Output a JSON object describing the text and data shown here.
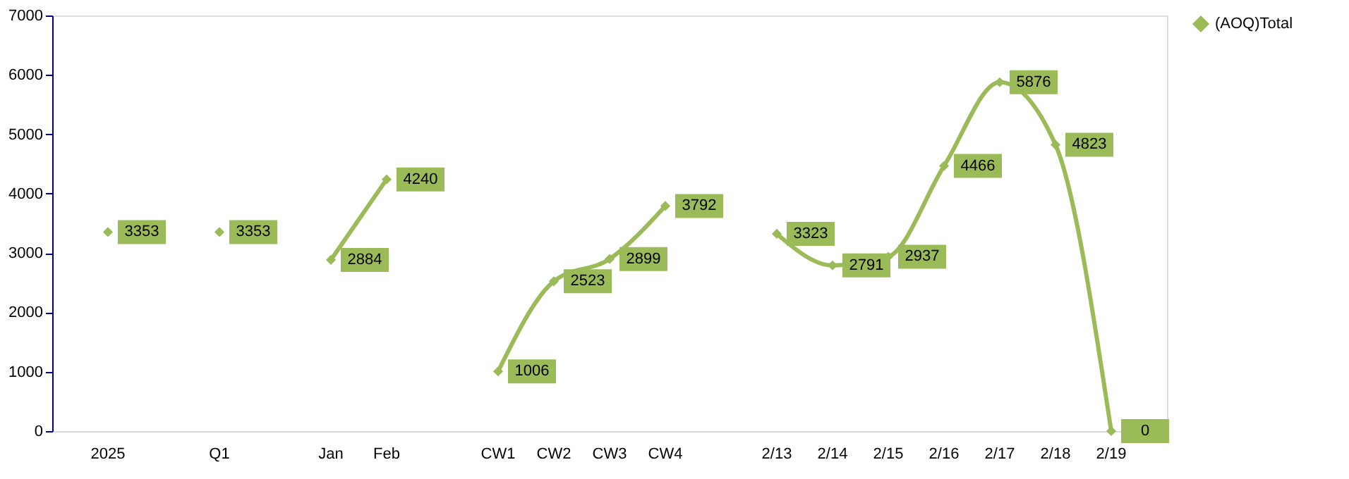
{
  "chart_data": {
    "type": "line",
    "categories": [
      "2025",
      null,
      "Q1",
      null,
      "Jan",
      "Feb",
      null,
      "CW1",
      "CW2",
      "CW3",
      "CW4",
      null,
      "2/13",
      "2/14",
      "2/15",
      "2/16",
      "2/17",
      "2/18",
      "2/19"
    ],
    "series": [
      {
        "name": "(AOQ)Total",
        "color": "#9bbb59",
        "values": [
          3353,
          null,
          3353,
          null,
          2884,
          4240,
          null,
          1006,
          2523,
          2899,
          3792,
          null,
          3323,
          2791,
          2937,
          4466,
          5876,
          4823,
          0
        ]
      }
    ],
    "ylim": [
      0,
      7000
    ],
    "yticks": [
      0,
      1000,
      2000,
      3000,
      4000,
      5000,
      6000,
      7000
    ],
    "grid": false,
    "legend": "right",
    "marker": "diamond",
    "line_style": "solid",
    "data_labels": true
  }
}
